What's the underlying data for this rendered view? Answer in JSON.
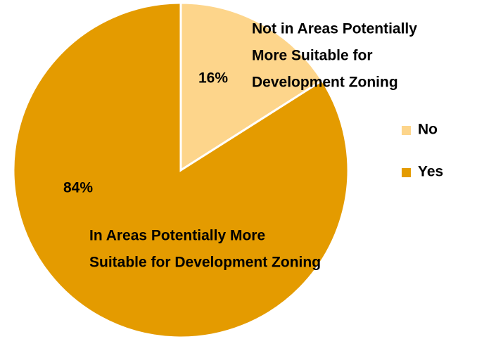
{
  "chart_data": {
    "type": "pie",
    "categories": [
      "No",
      "Yes"
    ],
    "values": [
      16,
      84
    ],
    "value_labels": [
      "16%",
      "84%"
    ],
    "colors": [
      "#FDD58B",
      "#E49B00"
    ],
    "legend": "right",
    "annotations": [
      {
        "lines": [
          "Not in Areas Potentially",
          "More Suitable for",
          "Development Zoning"
        ]
      },
      {
        "lines": [
          "In Areas Potentially More",
          "Suitable for Development Zoning"
        ]
      }
    ]
  }
}
